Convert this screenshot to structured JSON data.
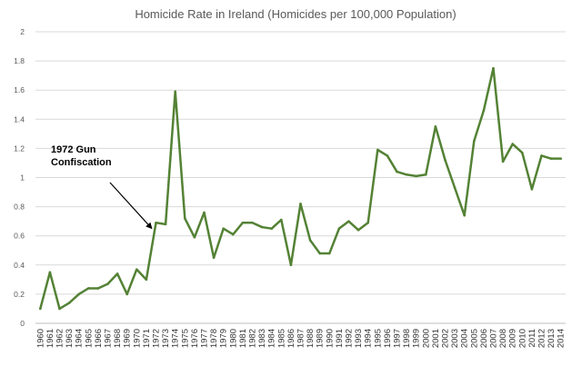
{
  "chart_data": {
    "type": "line",
    "title": "Homicide Rate in Ireland (Homicides per 100,000 Population)",
    "xlabel": "",
    "ylabel": "",
    "ylim": [
      0,
      2
    ],
    "yticks": [
      "0",
      "0.2",
      "0.4",
      "0.6",
      "0.8",
      "1",
      "1.2",
      "1.4",
      "1.6",
      "1.8",
      "2"
    ],
    "grid": true,
    "legend": "none",
    "color": "#548235",
    "x": [
      "1960",
      "1961",
      "1962",
      "1963",
      "1964",
      "1965",
      "1966",
      "1967",
      "1968",
      "1969",
      "1970",
      "1971",
      "1972",
      "1973",
      "1974",
      "1975",
      "1976",
      "1977",
      "1978",
      "1979",
      "1980",
      "1981",
      "1982",
      "1983",
      "1984",
      "1985",
      "1986",
      "1987",
      "1988",
      "1989",
      "1990",
      "1991",
      "1992",
      "1993",
      "1994",
      "1995",
      "1996",
      "1997",
      "1998",
      "1999",
      "2000",
      "2001",
      "2002",
      "2003",
      "2004",
      "2005",
      "2006",
      "2007",
      "2008",
      "2009",
      "2010",
      "2011",
      "2012",
      "2013",
      "2014"
    ],
    "series": [
      {
        "values": [
          0.1,
          0.35,
          0.1,
          0.14,
          0.2,
          0.24,
          0.24,
          0.27,
          0.34,
          0.2,
          0.37,
          0.3,
          0.69,
          0.68,
          1.59,
          0.72,
          0.59,
          0.76,
          0.45,
          0.65,
          0.61,
          0.69,
          0.69,
          0.66,
          0.65,
          0.71,
          0.4,
          0.82,
          0.57,
          0.48,
          0.48,
          0.65,
          0.7,
          0.64,
          0.69,
          1.19,
          1.15,
          1.04,
          1.02,
          1.01,
          1.02,
          1.35,
          1.12,
          0.93,
          0.74,
          1.25,
          1.46,
          1.75,
          1.11,
          1.23,
          1.17,
          0.92,
          1.15,
          1.13,
          1.13
        ]
      }
    ],
    "annotation": {
      "lines": [
        "1972 Gun",
        "Confiscation"
      ],
      "target_x": "1972",
      "target_y": 0.69
    }
  }
}
